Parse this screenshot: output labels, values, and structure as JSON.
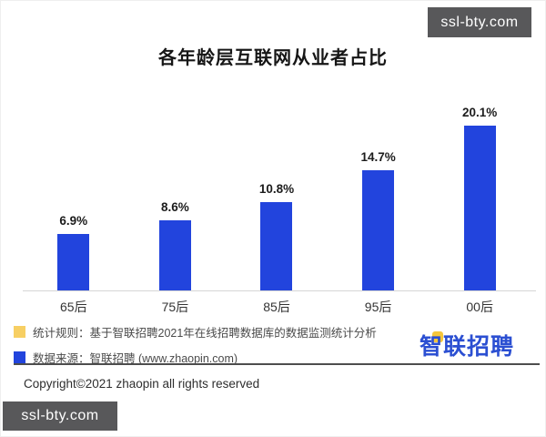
{
  "watermarks": {
    "top": "ssl-bty.com",
    "bottom": "ssl-bty.com"
  },
  "chart_data": {
    "type": "bar",
    "title": "各年龄层互联网从业者占比",
    "categories": [
      "65后",
      "75后",
      "85后",
      "95后",
      "00后"
    ],
    "values": [
      6.9,
      8.6,
      10.8,
      14.7,
      20.1
    ],
    "value_labels": [
      "6.9%",
      "8.6%",
      "10.8%",
      "14.7%",
      "20.1%"
    ],
    "bar_color": "#2244dd",
    "xlabel": "",
    "ylabel": "",
    "ylim": [
      0,
      22
    ],
    "grid": false,
    "legend_position": "none"
  },
  "footnotes": [
    {
      "swatch_color": "#f7cf63",
      "text": "统计规则：基于智联招聘2021年在线招聘数据库的数据监测统计分析"
    },
    {
      "swatch_color": "#2244dd",
      "text": "数据来源：智联招聘 (www.zhaopin.com)"
    }
  ],
  "logo": {
    "text": "智联招聘",
    "color": "#2b4fd2",
    "accent_color": "#f5c63c"
  },
  "footer": {
    "copyright": "Copyright©2021 zhaopin all rights reserved"
  }
}
